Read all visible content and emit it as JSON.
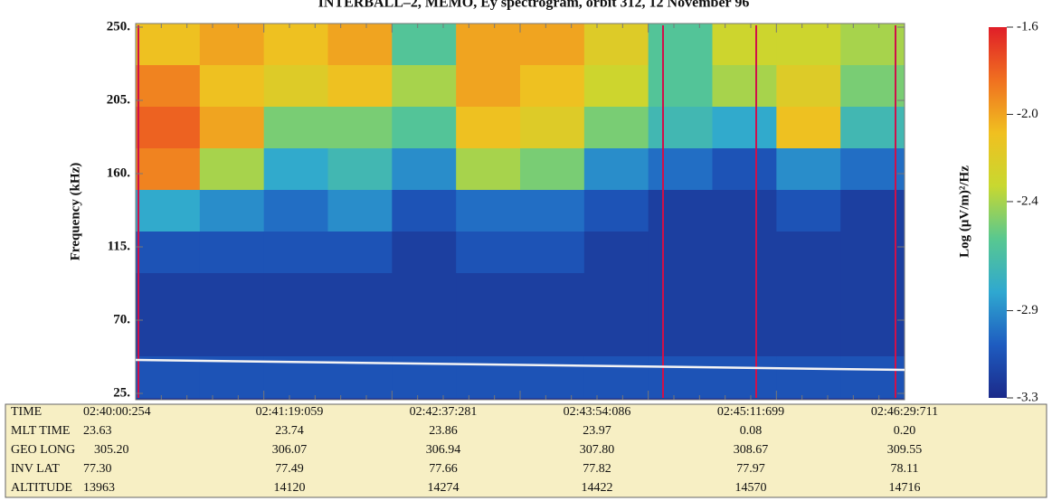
{
  "chart_data": {
    "type": "spectrogram",
    "title": "INTERBALL–2, MEMO, Ey spectrogram, orbit 312, 12 November 96",
    "y_label": "Frequency (kHz)",
    "colorbar_label": "Log (μV/m)²/Hz",
    "ylim": [
      25,
      250
    ],
    "yticks": [
      {
        "value": 250,
        "label": "250."
      },
      {
        "value": 205,
        "label": "205."
      },
      {
        "value": 160,
        "label": "160."
      },
      {
        "value": 115,
        "label": "115."
      },
      {
        "value": 70,
        "label": "70."
      },
      {
        "value": 25,
        "label": "25."
      }
    ],
    "zlim": [
      -3.3,
      -1.6
    ],
    "zticks": [
      -1.6,
      {
        "value": -2.0,
        "label": "-2.0"
      },
      -2.4,
      -2.9,
      -3.3
    ],
    "colormap": [
      "#1b2a8a",
      "#1e5cc0",
      "#2fa8d0",
      "#58c890",
      "#c8d830",
      "#f0c020",
      "#f07020",
      "#e01e28"
    ],
    "z": [
      [
        -2.1,
        -2.0,
        -2.1,
        -2.0,
        -2.6,
        -2.0,
        -2.0,
        -2.2,
        -2.6,
        -2.3,
        -2.3,
        -2.4
      ],
      [
        -1.9,
        -2.1,
        -2.2,
        -2.1,
        -2.4,
        -2.0,
        -2.1,
        -2.3,
        -2.6,
        -2.4,
        -2.2,
        -2.5
      ],
      [
        -1.8,
        -2.0,
        -2.5,
        -2.5,
        -2.6,
        -2.1,
        -2.2,
        -2.5,
        -2.7,
        -2.8,
        -2.1,
        -2.7
      ],
      [
        -1.9,
        -2.4,
        -2.8,
        -2.7,
        -2.9,
        -2.4,
        -2.5,
        -2.9,
        -3.0,
        -3.1,
        -2.9,
        -3.0
      ],
      [
        -2.8,
        -2.9,
        -3.0,
        -2.9,
        -3.1,
        -3.0,
        -3.0,
        -3.1,
        -3.2,
        -3.2,
        -3.1,
        -3.2
      ],
      [
        -3.1,
        -3.1,
        -3.1,
        -3.1,
        -3.2,
        -3.1,
        -3.1,
        -3.2,
        -3.2,
        -3.2,
        -3.2,
        -3.2
      ],
      [
        -3.2,
        -3.2,
        -3.2,
        -3.2,
        -3.2,
        -3.2,
        -3.2,
        -3.2,
        -3.2,
        -3.2,
        -3.2,
        -3.2
      ],
      [
        -3.2,
        -3.2,
        -3.2,
        -3.2,
        -3.2,
        -3.2,
        -3.2,
        -3.2,
        -3.2,
        -3.2,
        -3.2,
        -3.2
      ],
      [
        -3.1,
        -3.1,
        -3.1,
        -3.1,
        -3.1,
        -3.1,
        -3.1,
        -3.1,
        -3.1,
        -3.1,
        -3.1,
        -3.1
      ]
    ]
  },
  "table": {
    "rows": [
      [
        "TIME",
        "02:40:00:254",
        "02:41:19:059",
        "02:42:37:281",
        "02:43:54:086",
        "02:45:11:699",
        "02:46:29:711"
      ],
      [
        "MLT TIME",
        "23.63",
        "23.74",
        "23.86",
        "23.97",
        "0.08",
        "0.20"
      ],
      [
        "GEO LONG",
        "305.20",
        "306.07",
        "306.94",
        "307.80",
        "308.67",
        "309.55"
      ],
      [
        "INV LAT",
        "77.30",
        "77.49",
        "77.66",
        "77.82",
        "77.97",
        "78.11"
      ],
      [
        "ALTITUDE",
        "13963",
        "14120",
        "14274",
        "14422",
        "14570",
        "14716"
      ]
    ]
  }
}
